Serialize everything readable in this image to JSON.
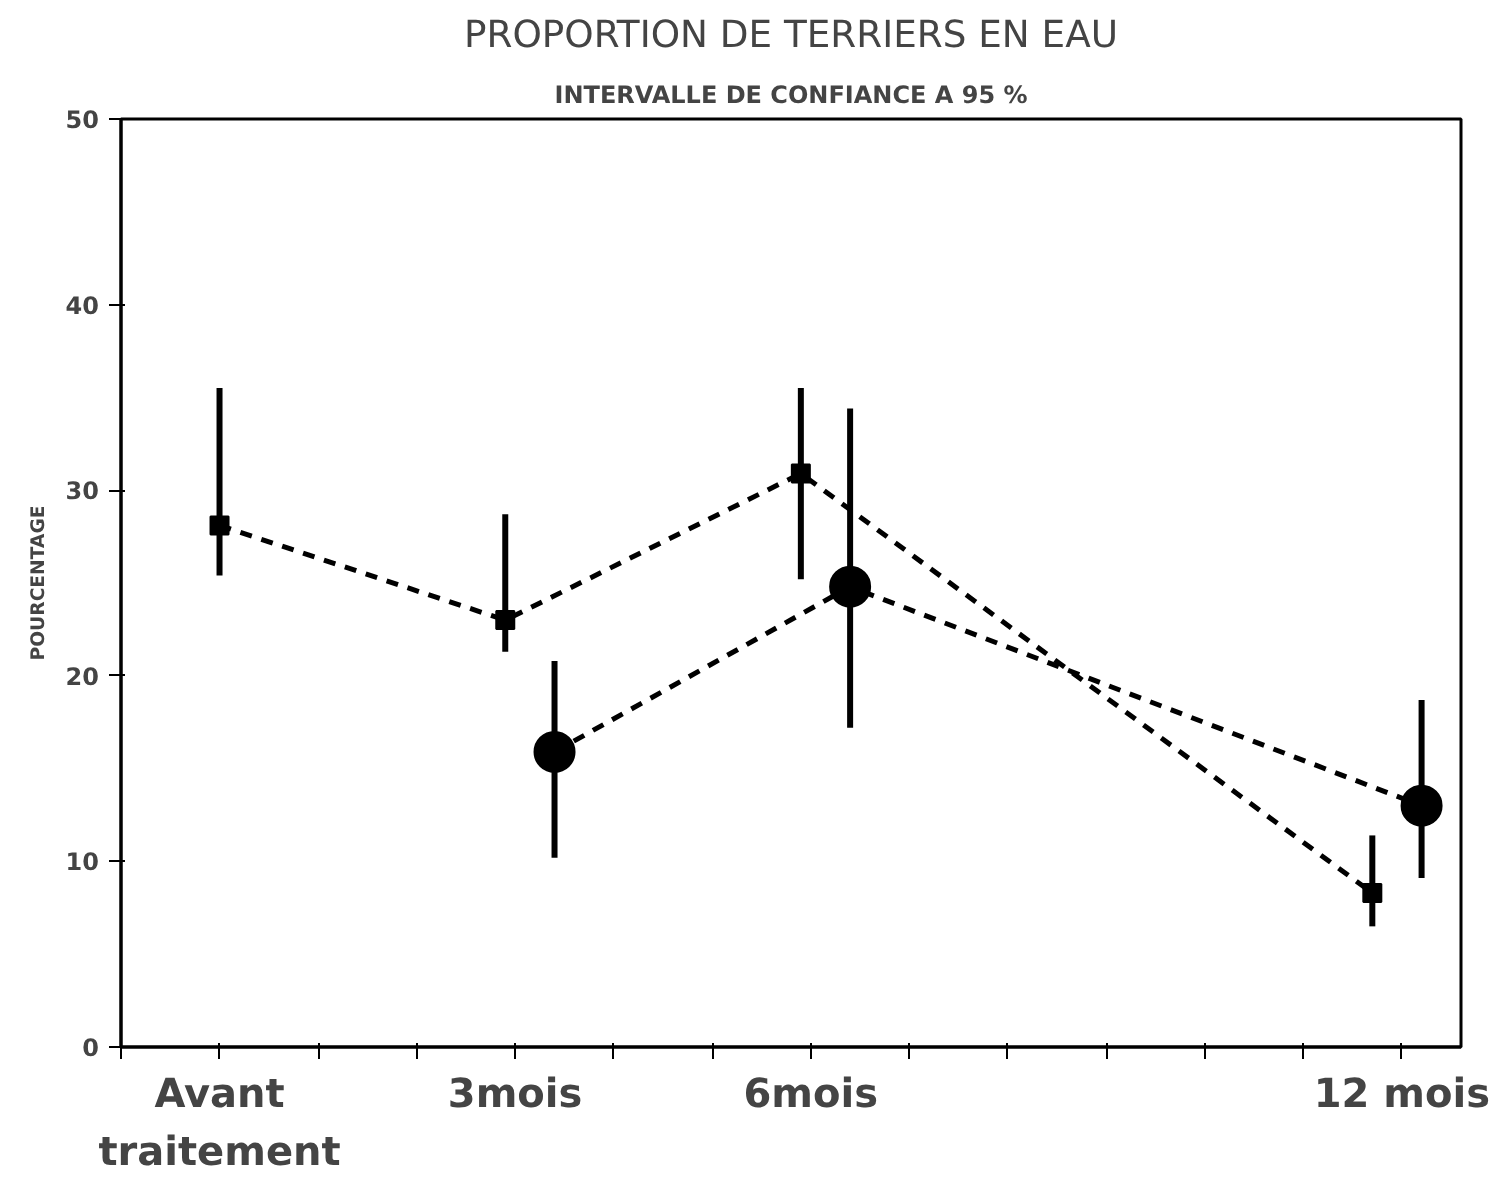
{
  "chart_data": {
    "type": "line",
    "title": "PROPORTION DE TERRIERS EN EAU",
    "subtitle": "INTERVALLE DE CONFIANCE A 95 %",
    "ylabel": "POURCENTAGE",
    "xlim": [
      -1.0,
      12.6
    ],
    "ylim": [
      0,
      50
    ],
    "yticks": [
      0,
      10,
      20,
      30,
      40,
      50
    ],
    "xticks": [
      {
        "value": -1,
        "label": null
      },
      {
        "value": 0,
        "label": "Avant\ntraitement"
      },
      {
        "value": 1,
        "label": null
      },
      {
        "value": 2,
        "label": null
      },
      {
        "value": 3,
        "label": "3mois"
      },
      {
        "value": 4,
        "label": null
      },
      {
        "value": 5,
        "label": null
      },
      {
        "value": 6,
        "label": "6mois"
      },
      {
        "value": 7,
        "label": null
      },
      {
        "value": 8,
        "label": null
      },
      {
        "value": 9,
        "label": null
      },
      {
        "value": 10,
        "label": null
      },
      {
        "value": 11,
        "label": null
      },
      {
        "value": 12,
        "label": "12 mois"
      }
    ],
    "grid": false,
    "line_style": "dashed",
    "series": [
      {
        "color": "#000000",
        "marker": "square",
        "x": [
          0,
          2.9,
          5.9,
          11.7
        ],
        "values": [
          28.1,
          23.0,
          30.9,
          8.3
        ],
        "errors": [
          [
            25.4,
            35.5
          ],
          [
            21.3,
            28.7
          ],
          [
            25.2,
            35.5
          ],
          [
            6.5,
            11.4
          ]
        ]
      },
      {
        "color": "#000000",
        "marker": "circle",
        "x": [
          3.4,
          6.4,
          12.2
        ],
        "values": [
          15.9,
          24.8,
          13.0
        ],
        "errors": [
          [
            10.2,
            20.8
          ],
          [
            17.2,
            34.4
          ],
          [
            9.1,
            18.7
          ]
        ]
      }
    ]
  }
}
